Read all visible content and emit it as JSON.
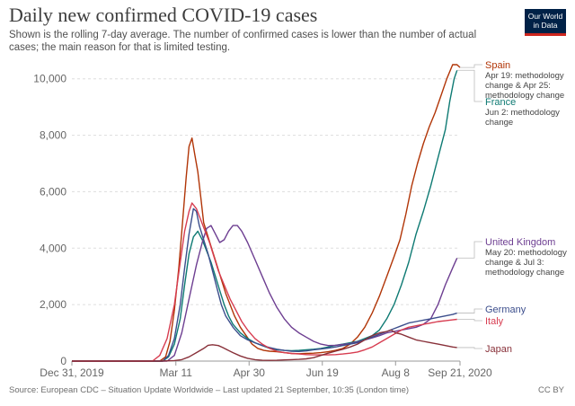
{
  "header": {
    "title": "Daily new confirmed COVID-19 cases",
    "subtitle": "Shown is the rolling 7-day average. The number of confirmed cases is lower than the number of actual cases; the main reason for that is limited testing.",
    "logo_line1": "Our World",
    "logo_line2": "in Data"
  },
  "footer": {
    "source": "Source: European CDC – Situation Update Worldwide – Last updated 21 September, 10:35 (London time)",
    "license": "CC BY"
  },
  "chart_data": {
    "type": "line",
    "title": "Daily new confirmed COVID-19 cases",
    "x_unit": "days since Dec 31, 2019",
    "xlim": [
      0,
      265
    ],
    "ylim": [
      0,
      10500
    ],
    "y_ticks": [
      0,
      2000,
      4000,
      6000,
      8000,
      10000
    ],
    "y_tick_labels": [
      "0",
      "2,000",
      "4,000",
      "6,000",
      "8,000",
      "10,000"
    ],
    "x_ticks": [
      0,
      71,
      121,
      171,
      221,
      265
    ],
    "x_tick_labels": [
      "Dec 31, 2019",
      "Mar 11",
      "Apr 30",
      "Jun 19",
      "Aug 8",
      "Sep 21, 2020"
    ],
    "grid": true,
    "series": [
      {
        "name": "Spain",
        "color": "#b13507",
        "note": [
          "Apr 19: methodology",
          "change & Apr 25:",
          "methodology change"
        ],
        "points": [
          [
            0,
            0
          ],
          [
            60,
            0
          ],
          [
            64,
            150
          ],
          [
            67,
            700
          ],
          [
            70,
            1800
          ],
          [
            73,
            3300
          ],
          [
            76,
            5200
          ],
          [
            78,
            6500
          ],
          [
            80,
            7600
          ],
          [
            82,
            7900
          ],
          [
            84,
            7300
          ],
          [
            86,
            6700
          ],
          [
            88,
            5800
          ],
          [
            90,
            4900
          ],
          [
            93,
            4400
          ],
          [
            96,
            3900
          ],
          [
            99,
            3400
          ],
          [
            102,
            2900
          ],
          [
            105,
            2400
          ],
          [
            108,
            2000
          ],
          [
            111,
            1600
          ],
          [
            115,
            1200
          ],
          [
            119,
            900
          ],
          [
            123,
            600
          ],
          [
            127,
            450
          ],
          [
            131,
            380
          ],
          [
            135,
            350
          ],
          [
            140,
            330
          ],
          [
            145,
            300
          ],
          [
            150,
            270
          ],
          [
            155,
            260
          ],
          [
            160,
            270
          ],
          [
            165,
            280
          ],
          [
            170,
            300
          ],
          [
            175,
            330
          ],
          [
            180,
            380
          ],
          [
            185,
            450
          ],
          [
            190,
            600
          ],
          [
            195,
            850
          ],
          [
            200,
            1200
          ],
          [
            205,
            1700
          ],
          [
            210,
            2300
          ],
          [
            215,
            3000
          ],
          [
            220,
            3700
          ],
          [
            224,
            4300
          ],
          [
            228,
            5200
          ],
          [
            232,
            6200
          ],
          [
            236,
            7000
          ],
          [
            240,
            7700
          ],
          [
            244,
            8300
          ],
          [
            248,
            8800
          ],
          [
            252,
            9400
          ],
          [
            256,
            10000
          ],
          [
            260,
            10500
          ],
          [
            263,
            10500
          ],
          [
            265,
            10400
          ]
        ]
      },
      {
        "name": "France",
        "color": "#0e7a73",
        "note": [
          "Jun 2: methodology",
          "change"
        ],
        "points": [
          [
            0,
            0
          ],
          [
            62,
            0
          ],
          [
            66,
            150
          ],
          [
            70,
            600
          ],
          [
            74,
            1500
          ],
          [
            77,
            2700
          ],
          [
            80,
            3800
          ],
          [
            83,
            4400
          ],
          [
            86,
            4600
          ],
          [
            89,
            4300
          ],
          [
            92,
            3900
          ],
          [
            95,
            3500
          ],
          [
            98,
            3000
          ],
          [
            101,
            2500
          ],
          [
            104,
            2000
          ],
          [
            107,
            1600
          ],
          [
            110,
            1300
          ],
          [
            115,
            1000
          ],
          [
            120,
            800
          ],
          [
            125,
            650
          ],
          [
            130,
            550
          ],
          [
            135,
            450
          ],
          [
            140,
            400
          ],
          [
            145,
            380
          ],
          [
            150,
            370
          ],
          [
            155,
            380
          ],
          [
            160,
            400
          ],
          [
            165,
            420
          ],
          [
            170,
            450
          ],
          [
            175,
            500
          ],
          [
            180,
            560
          ],
          [
            185,
            600
          ],
          [
            190,
            650
          ],
          [
            195,
            700
          ],
          [
            200,
            800
          ],
          [
            205,
            900
          ],
          [
            210,
            1100
          ],
          [
            215,
            1500
          ],
          [
            220,
            2000
          ],
          [
            225,
            2700
          ],
          [
            230,
            3500
          ],
          [
            235,
            4500
          ],
          [
            240,
            5300
          ],
          [
            245,
            6200
          ],
          [
            250,
            7200
          ],
          [
            255,
            8200
          ],
          [
            258,
            9200
          ],
          [
            261,
            10000
          ],
          [
            263,
            10300
          ]
        ]
      },
      {
        "name": "United Kingdom",
        "color": "#6d3e91",
        "note": [
          "May 20: methodology",
          "change & Jul 3:",
          "methodology change"
        ],
        "points": [
          [
            0,
            0
          ],
          [
            65,
            0
          ],
          [
            70,
            200
          ],
          [
            75,
            1000
          ],
          [
            80,
            2200
          ],
          [
            85,
            3400
          ],
          [
            89,
            4200
          ],
          [
            92,
            4700
          ],
          [
            95,
            4800
          ],
          [
            98,
            4500
          ],
          [
            101,
            4200
          ],
          [
            104,
            4300
          ],
          [
            107,
            4600
          ],
          [
            110,
            4800
          ],
          [
            113,
            4800
          ],
          [
            116,
            4600
          ],
          [
            120,
            4200
          ],
          [
            125,
            3600
          ],
          [
            130,
            3000
          ],
          [
            135,
            2400
          ],
          [
            140,
            1900
          ],
          [
            145,
            1500
          ],
          [
            150,
            1200
          ],
          [
            155,
            1000
          ],
          [
            160,
            850
          ],
          [
            165,
            700
          ],
          [
            170,
            600
          ],
          [
            175,
            550
          ],
          [
            180,
            560
          ],
          [
            185,
            590
          ],
          [
            190,
            620
          ],
          [
            195,
            680
          ],
          [
            200,
            750
          ],
          [
            205,
            820
          ],
          [
            210,
            900
          ],
          [
            215,
            1000
          ],
          [
            220,
            1050
          ],
          [
            225,
            1100
          ],
          [
            230,
            1150
          ],
          [
            235,
            1200
          ],
          [
            240,
            1300
          ],
          [
            245,
            1500
          ],
          [
            250,
            2000
          ],
          [
            255,
            2700
          ],
          [
            260,
            3300
          ],
          [
            263,
            3650
          ]
        ]
      },
      {
        "name": "Germany",
        "color": "#3c4e8c",
        "note": [],
        "points": [
          [
            0,
            0
          ],
          [
            62,
            0
          ],
          [
            66,
            200
          ],
          [
            70,
            800
          ],
          [
            74,
            2000
          ],
          [
            77,
            3300
          ],
          [
            80,
            4500
          ],
          [
            83,
            5400
          ],
          [
            85,
            5300
          ],
          [
            87,
            4800
          ],
          [
            90,
            4300
          ],
          [
            93,
            3800
          ],
          [
            96,
            3200
          ],
          [
            99,
            2600
          ],
          [
            102,
            2000
          ],
          [
            105,
            1600
          ],
          [
            110,
            1200
          ],
          [
            115,
            900
          ],
          [
            120,
            750
          ],
          [
            125,
            650
          ],
          [
            130,
            550
          ],
          [
            135,
            480
          ],
          [
            140,
            420
          ],
          [
            145,
            380
          ],
          [
            150,
            350
          ],
          [
            155,
            340
          ],
          [
            160,
            360
          ],
          [
            165,
            400
          ],
          [
            170,
            430
          ],
          [
            175,
            460
          ],
          [
            180,
            500
          ],
          [
            185,
            550
          ],
          [
            190,
            600
          ],
          [
            195,
            650
          ],
          [
            200,
            750
          ],
          [
            205,
            850
          ],
          [
            210,
            950
          ],
          [
            215,
            1050
          ],
          [
            220,
            1150
          ],
          [
            225,
            1250
          ],
          [
            230,
            1350
          ],
          [
            235,
            1400
          ],
          [
            240,
            1450
          ],
          [
            245,
            1500
          ],
          [
            250,
            1550
          ],
          [
            255,
            1600
          ],
          [
            260,
            1650
          ],
          [
            263,
            1700
          ]
        ]
      },
      {
        "name": "Italy",
        "color": "#d73c50",
        "note": [],
        "points": [
          [
            0,
            0
          ],
          [
            55,
            0
          ],
          [
            60,
            200
          ],
          [
            65,
            800
          ],
          [
            70,
            2000
          ],
          [
            74,
            3500
          ],
          [
            77,
            4600
          ],
          [
            80,
            5300
          ],
          [
            82,
            5600
          ],
          [
            85,
            5400
          ],
          [
            88,
            5000
          ],
          [
            91,
            4600
          ],
          [
            94,
            4200
          ],
          [
            97,
            3700
          ],
          [
            100,
            3200
          ],
          [
            104,
            2700
          ],
          [
            108,
            2200
          ],
          [
            112,
            1800
          ],
          [
            116,
            1400
          ],
          [
            120,
            1100
          ],
          [
            125,
            800
          ],
          [
            130,
            600
          ],
          [
            135,
            450
          ],
          [
            140,
            350
          ],
          [
            145,
            300
          ],
          [
            150,
            270
          ],
          [
            155,
            250
          ],
          [
            160,
            230
          ],
          [
            165,
            220
          ],
          [
            170,
            220
          ],
          [
            175,
            220
          ],
          [
            180,
            230
          ],
          [
            185,
            250
          ],
          [
            190,
            280
          ],
          [
            195,
            320
          ],
          [
            200,
            400
          ],
          [
            205,
            500
          ],
          [
            210,
            650
          ],
          [
            215,
            800
          ],
          [
            220,
            950
          ],
          [
            225,
            1100
          ],
          [
            230,
            1200
          ],
          [
            235,
            1250
          ],
          [
            240,
            1300
          ],
          [
            245,
            1350
          ],
          [
            250,
            1400
          ],
          [
            255,
            1430
          ],
          [
            260,
            1460
          ],
          [
            263,
            1480
          ]
        ]
      },
      {
        "name": "Japan",
        "color": "#883039",
        "note": [],
        "points": [
          [
            0,
            0
          ],
          [
            60,
            0
          ],
          [
            70,
            20
          ],
          [
            75,
            50
          ],
          [
            80,
            150
          ],
          [
            85,
            300
          ],
          [
            90,
            450
          ],
          [
            93,
            560
          ],
          [
            96,
            580
          ],
          [
            100,
            550
          ],
          [
            103,
            480
          ],
          [
            106,
            400
          ],
          [
            110,
            300
          ],
          [
            115,
            180
          ],
          [
            120,
            100
          ],
          [
            125,
            50
          ],
          [
            130,
            30
          ],
          [
            135,
            25
          ],
          [
            140,
            30
          ],
          [
            145,
            40
          ],
          [
            150,
            50
          ],
          [
            155,
            60
          ],
          [
            160,
            80
          ],
          [
            165,
            120
          ],
          [
            170,
            200
          ],
          [
            175,
            280
          ],
          [
            180,
            350
          ],
          [
            185,
            420
          ],
          [
            190,
            500
          ],
          [
            195,
            600
          ],
          [
            200,
            750
          ],
          [
            205,
            900
          ],
          [
            210,
            1000
          ],
          [
            215,
            1050
          ],
          [
            218,
            1100
          ],
          [
            221,
            1000
          ],
          [
            225,
            950
          ],
          [
            230,
            850
          ],
          [
            235,
            750
          ],
          [
            240,
            700
          ],
          [
            245,
            650
          ],
          [
            250,
            600
          ],
          [
            255,
            550
          ],
          [
            260,
            500
          ],
          [
            263,
            480
          ]
        ]
      }
    ]
  }
}
